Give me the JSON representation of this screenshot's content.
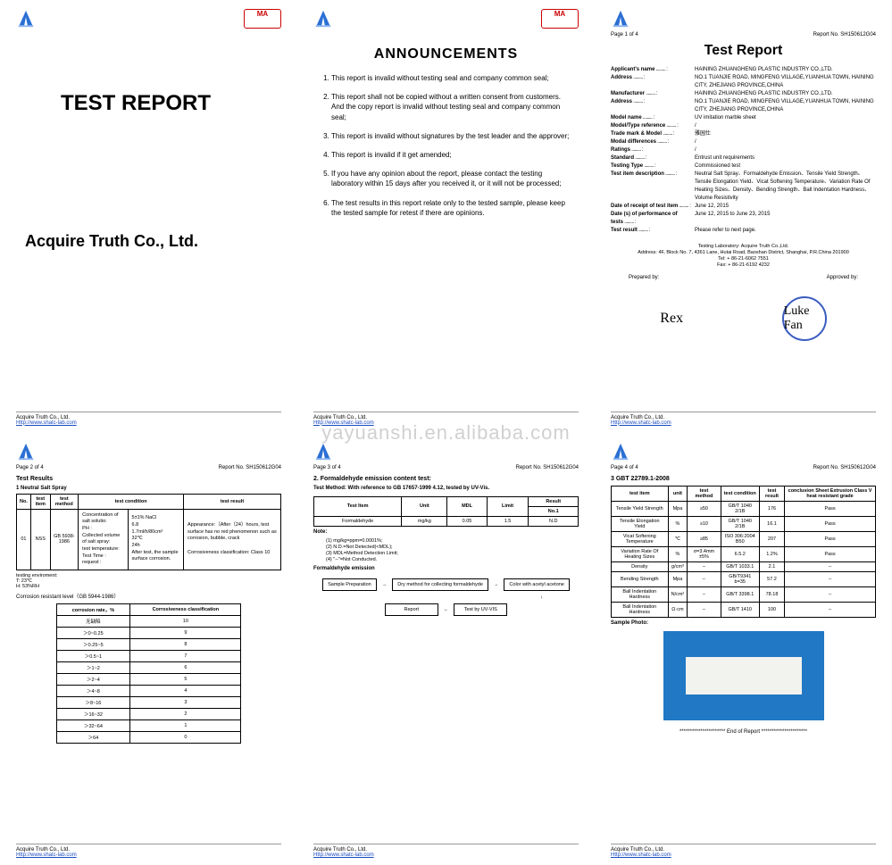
{
  "watermark": "yayuanshi.en.alibaba.com",
  "report_no": "SH150612G04",
  "footer_company": "Acquire Truth Co., Ltd.",
  "footer_link": "Http://www.shatc-lab.com",
  "cover": {
    "title": "TEST REPORT",
    "company": "Acquire Truth Co., Ltd."
  },
  "announcements": {
    "title": "ANNOUNCEMENTS",
    "items": [
      "This report is invalid without testing seal and company common seal;",
      "This report shall not be copied without a written consent from customers. And the copy report is invalid without testing seal and company common seal;",
      "This report is invalid without signatures by the test leader and the approver;",
      "This report is invalid if it get amended;",
      "If you have any opinion about the report, please contact the testing laboratory within 15 days after you received it, or it will not be processed;",
      "The test results in this report relate only to the tested sample, please keep the tested sample for retest if there are opinions."
    ]
  },
  "p3": {
    "page_label": "Page 1 of 4",
    "title": "Test Report",
    "rows": [
      {
        "l": "Applicant's name",
        "v": "HAINING ZHUANGHENG PLASTIC INDUSTRY CO.,LTD."
      },
      {
        "l": "Address",
        "v": "NO.1 TUANJIE ROAD, MINGFENG VILLAGE,YUANHUA TOWN, HAINING CITY, ZHEJIANG PROVINCE,CHINA"
      },
      {
        "l": "Manufacturer",
        "v": "HAINING ZHUANGHENG PLASTIC INDUSTRY CO.,LTD."
      },
      {
        "l": "Address",
        "v": "NO.1 TUANJIE ROAD, MINGFENG VILLAGE,YUANHUA TOWN, HAINING CITY, ZHEJIANG PROVINCE,CHINA"
      },
      {
        "l": "Model name",
        "v": "UV imitation marble sheet"
      },
      {
        "l": "Model/Type reference",
        "v": "/"
      },
      {
        "l": "Trade mark & Model",
        "v": "雅园仕"
      },
      {
        "l": "Modal differences",
        "v": "/"
      },
      {
        "l": "Ratings",
        "v": "/"
      },
      {
        "l": "Standard",
        "v": "Entrust unit requirements"
      },
      {
        "l": "Testing Type",
        "v": "Commissioned test"
      },
      {
        "l": "Test item description",
        "v": "Neutral Salt Spray、Formaldehyde Emission、Tensile Yield Strength、Tensile Elongation Yield、Vicat Softening Temperature、Variation Rate Of Heating Sizes、Density、Bending Strength、Ball Indentation Hardness、Volume Resistivity"
      },
      {
        "l": "Date of receipt of test item",
        "v": "June 12, 2015"
      },
      {
        "l": "Date (s) of performance of tests",
        "v": "June 12, 2015 to June 23, 2015"
      },
      {
        "l": "Test result",
        "v": "Please refer to next page."
      }
    ],
    "lab_addr": "Testing Laboratory: Acquire Truth Co.,Ltd.\nAddress: 4F, Block No. 7, 4361 Lane, Hutai Road, Baoshan District, Shanghai, P.R.China 201900\nTel: + 86-21-6062 7551\nFax: + 86-21-6192 4232",
    "prepared_by": "Prepared by:",
    "approved_by": "Approved by:",
    "sig1": "Rex",
    "sig2": "Luke Fan"
  },
  "p4": {
    "page_label": "Page 2 of 4",
    "title": "Test Results",
    "sec": "1 Neutral Salt Spray",
    "headers": [
      "No.",
      "test item",
      "test method",
      "test condition",
      "test result"
    ],
    "row": {
      "no": "01",
      "item": "NSS",
      "method": "GB 5938-1986",
      "cond_labels": [
        "Concentration of salt solutio:",
        "PH :",
        "Collected volume of salt spray:",
        "test temperature:",
        "Test Time :",
        "request :"
      ],
      "cond_vals": [
        "5±1% NaCl",
        "6.8",
        "1.7ml/h/80cm²",
        "32℃",
        "24h",
        "After test, the sample surface corrosion."
      ],
      "result": "Appearance:（After（24）hours, test surface has no red phenomenon such as corrosion, bubble, crack\nCorrosiveness classification: Class 10"
    },
    "env": "testing enviroment:\nT:  23℃\nH:  53%RH",
    "corr_caption": "Corrosion resistant level（GB 5944-1986）",
    "corr_headers": [
      "corrosion rate，%",
      "Corrosiveness classification"
    ],
    "corr_rows": [
      [
        "无缺陷",
        "10"
      ],
      [
        "＞0~0.25",
        "9"
      ],
      [
        "＞0.25~5",
        "8"
      ],
      [
        "＞0.5~1",
        "7"
      ],
      [
        "＞1~2",
        "6"
      ],
      [
        "＞2~4",
        "5"
      ],
      [
        "＞4~8",
        "4"
      ],
      [
        "＞8~16",
        "3"
      ],
      [
        "＞16~32",
        "2"
      ],
      [
        "＞32~64",
        "1"
      ],
      [
        "＞64",
        "0"
      ]
    ]
  },
  "p5": {
    "page_label": "Page 3 of 4",
    "sec": "2. Formaldehyde emission content test:",
    "method": "Test Method: With reference to GB 17657-1999 4.12, tested by UV-Vis.",
    "headers": [
      "Test Item",
      "Unit",
      "MDL",
      "Limit",
      "Result"
    ],
    "sub_header": "No.1",
    "row": [
      "Formaldehyde",
      "mg/kg",
      "0.05",
      "1.5",
      "N.D"
    ],
    "note_title": "Note:",
    "notes": [
      "(1) mg/kg=ppm=0.0001%;",
      "(2) N.D.=Not Detected(<MDL);",
      "(3) MDL=Method Detection Limit;",
      "(4) \"--\"=Not Conducted."
    ],
    "flow_title": "Formaldehyde emission",
    "flow": {
      "a": "Sample Preparation",
      "b": "Dry method for collecting formaldehyde",
      "c": "Color with acetyl acetone",
      "d": "Test by UV-VIS",
      "e": "Report"
    }
  },
  "p6": {
    "page_label": "Page 4 of 4",
    "sec": "3 GBT 22789.1-2008",
    "headers": [
      "test item",
      "unit",
      "test method",
      "test condition",
      "test result",
      "conclusion Sheet Extrusion Class V heat resistant grade"
    ],
    "rows": [
      [
        "Tensile Yield Strength",
        "Mpa",
        "≥50",
        "GB/T 1040 2/1B",
        "176",
        "Pass"
      ],
      [
        "Tensile Elongation Yield",
        "%",
        "≥10",
        "GB/T 1040 2/1B",
        "16.1",
        "Pass"
      ],
      [
        "Vicat Softening Temperature",
        "℃",
        "≥85",
        "ISO 306:2004 B50",
        "207",
        "Pass"
      ],
      [
        "Variation Rate Of Heating Sizes",
        "%",
        "σ=3.4mm ±5%",
        "6.5.2",
        "1.2%",
        "Pass"
      ],
      [
        "Density",
        "g/cm³",
        "--",
        "GB/T 1033.1",
        "2.1",
        "--"
      ],
      [
        "Bending Strength",
        "Mpa",
        "--",
        "GB/T9341 b=35",
        "57.2",
        "--"
      ],
      [
        "Ball Indentation Hardness",
        "N/cm²",
        "--",
        "GB/T 3398.1",
        "78.18",
        "--"
      ],
      [
        "Ball Indentation Hardness",
        "Ω·cm",
        "--",
        "GB/T 1410",
        "100",
        "--"
      ]
    ],
    "photo_label": "Sample Photo:",
    "end": "********************** End of Report **********************",
    "photo_bg": "#2178c4",
    "strip": "#f2f2ee"
  }
}
